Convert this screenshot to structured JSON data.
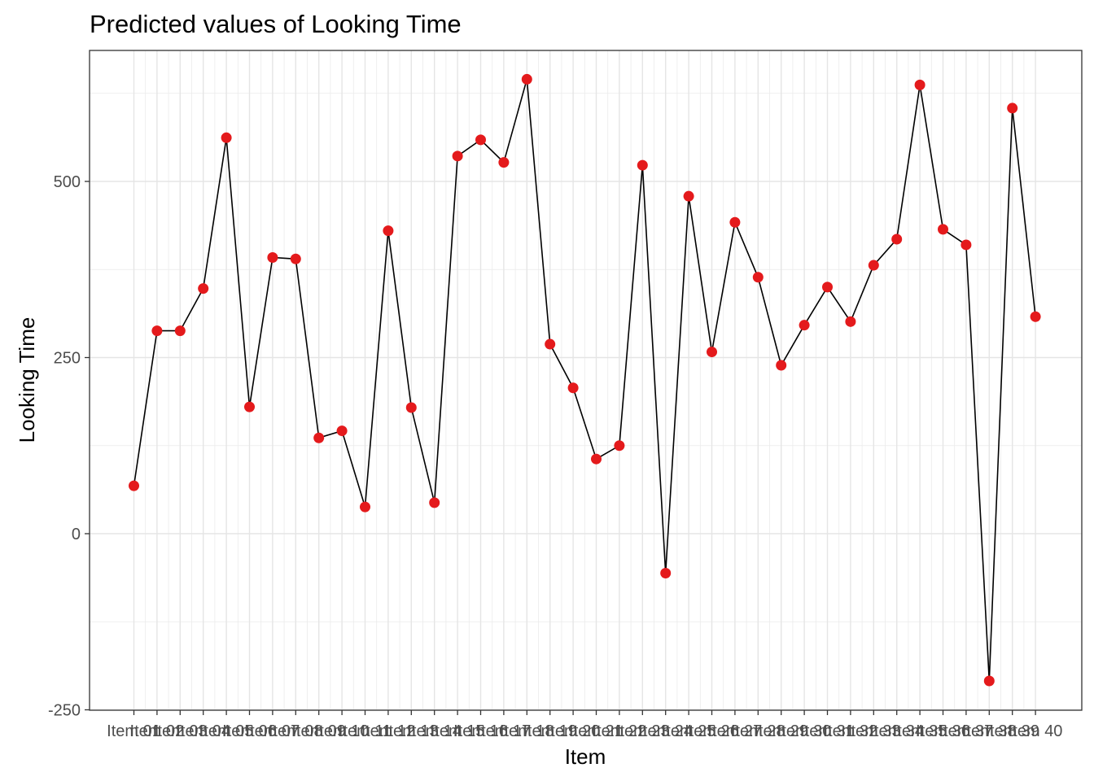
{
  "chart_data": {
    "type": "line",
    "title": "Predicted values of Looking Time",
    "xlabel": "Item",
    "ylabel": "Looking Time",
    "ylim": [
      -250,
      690
    ],
    "yticks": [
      -250,
      0,
      250,
      500
    ],
    "grid": true,
    "point_color": "#e41a1c",
    "line_color": "#000000",
    "categories": [
      "Item 01",
      "Item 02",
      "Item 03",
      "Item 04",
      "Item 05",
      "Item 06",
      "Item 07",
      "Item 08",
      "Item 09",
      "Item 10",
      "Item 11",
      "Item 12",
      "Item 13",
      "Item 14",
      "Item 15",
      "Item 16",
      "Item 17",
      "Item 18",
      "Item 19",
      "Item 20",
      "Item 21",
      "Item 22",
      "Item 23",
      "Item 24",
      "Item 25",
      "Item 26",
      "Item 27",
      "Item 28",
      "Item 29",
      "Item 30",
      "Item 31",
      "Item 32",
      "Item 33",
      "Item 34",
      "Item 35",
      "Item 36",
      "Item 37",
      "Item 38",
      "Item 39",
      "Item 40"
    ],
    "values": [
      68,
      288,
      288,
      348,
      562,
      180,
      392,
      390,
      136,
      146,
      38,
      430,
      179,
      44,
      536,
      559,
      527,
      645,
      269,
      207,
      106,
      125,
      523,
      -56,
      479,
      258,
      442,
      364,
      239,
      296,
      350,
      301,
      381,
      418,
      637,
      432,
      410,
      -209,
      604,
      308
    ]
  }
}
